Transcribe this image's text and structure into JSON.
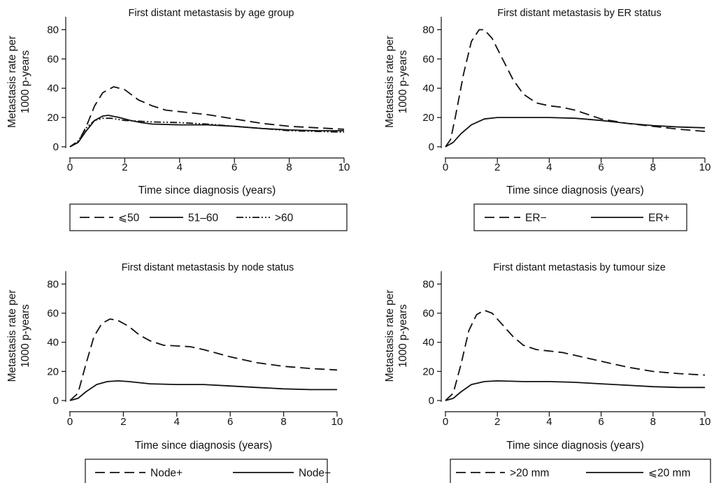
{
  "chart_data": [
    {
      "type": "line",
      "title": "First distant metastasis by age group",
      "xlabel": "Time since diagnosis (years)",
      "ylabel": [
        "Metastasis rate per",
        "1000 p-years"
      ],
      "xlim": [
        0,
        10
      ],
      "ylim": [
        0,
        85
      ],
      "xticks": [
        "0",
        "2",
        "4",
        "6",
        "8",
        "10"
      ],
      "yticks": [
        "0",
        "20",
        "40",
        "60",
        "80"
      ],
      "grid": false,
      "legend_position": "bottom",
      "series": [
        {
          "name": "⩽50",
          "style": "dashed",
          "color": "#111111",
          "points": [
            [
              0,
              0
            ],
            [
              0.3,
              3
            ],
            [
              0.6,
              14
            ],
            [
              0.9,
              28
            ],
            [
              1.2,
              37
            ],
            [
              1.6,
              41
            ],
            [
              2,
              39
            ],
            [
              2.5,
              32
            ],
            [
              3,
              28
            ],
            [
              3.5,
              25
            ],
            [
              4,
              24
            ],
            [
              5,
              22
            ],
            [
              6,
              19
            ],
            [
              7,
              16
            ],
            [
              8,
              14
            ],
            [
              9,
              13
            ],
            [
              10,
              12
            ]
          ]
        },
        {
          "name": "51–60",
          "style": "solid",
          "color": "#111111",
          "points": [
            [
              0,
              0
            ],
            [
              0.3,
              3
            ],
            [
              0.6,
              11
            ],
            [
              0.9,
              18
            ],
            [
              1.2,
              21
            ],
            [
              1.4,
              21.5
            ],
            [
              1.8,
              20
            ],
            [
              2.2,
              18
            ],
            [
              2.6,
              16.5
            ],
            [
              3,
              15.5
            ],
            [
              4,
              15
            ],
            [
              5,
              15
            ],
            [
              6,
              14
            ],
            [
              7,
              12.5
            ],
            [
              8,
              11.5
            ],
            [
              9,
              11
            ],
            [
              10,
              11
            ]
          ]
        },
        {
          "name": ">60",
          "style": "dashdotdot",
          "color": "#111111",
          "points": [
            [
              0,
              0
            ],
            [
              0.3,
              4
            ],
            [
              0.6,
              13
            ],
            [
              0.9,
              18
            ],
            [
              1.2,
              19.5
            ],
            [
              1.5,
              19.5
            ],
            [
              2,
              18
            ],
            [
              3,
              17
            ],
            [
              4,
              16.5
            ],
            [
              5,
              15.5
            ],
            [
              6,
              14
            ],
            [
              7,
              12.5
            ],
            [
              8,
              11
            ],
            [
              9,
              10.5
            ],
            [
              10,
              10
            ]
          ]
        }
      ]
    },
    {
      "type": "line",
      "title": "First distant metastasis by ER status",
      "xlabel": "Time since diagnosis (years)",
      "ylabel": [
        "Metastasis rate per",
        "1000 p-years"
      ],
      "xlim": [
        0,
        10
      ],
      "ylim": [
        0,
        85
      ],
      "xticks": [
        "0",
        "2",
        "4",
        "6",
        "8",
        "10"
      ],
      "yticks": [
        "0",
        "20",
        "40",
        "60",
        "80"
      ],
      "grid": false,
      "legend_position": "bottom",
      "series": [
        {
          "name": "ER−",
          "style": "dashed",
          "color": "#111111",
          "points": [
            [
              0,
              0
            ],
            [
              0.2,
              5
            ],
            [
              0.4,
              22
            ],
            [
              0.7,
              50
            ],
            [
              1,
              72
            ],
            [
              1.3,
              80
            ],
            [
              1.5,
              80
            ],
            [
              1.8,
              74
            ],
            [
              2.2,
              60
            ],
            [
              2.6,
              46
            ],
            [
              3,
              36
            ],
            [
              3.5,
              30
            ],
            [
              4,
              28
            ],
            [
              4.5,
              27
            ],
            [
              5,
              25
            ],
            [
              5.5,
              22
            ],
            [
              6,
              19
            ],
            [
              7,
              16
            ],
            [
              8,
              14
            ],
            [
              9,
              12
            ],
            [
              10,
              10.5
            ]
          ]
        },
        {
          "name": "ER+",
          "style": "solid",
          "color": "#111111",
          "points": [
            [
              0,
              0
            ],
            [
              0.3,
              3
            ],
            [
              0.6,
              9
            ],
            [
              1,
              15
            ],
            [
              1.5,
              19
            ],
            [
              2,
              20
            ],
            [
              3,
              20
            ],
            [
              4,
              20
            ],
            [
              5,
              19.5
            ],
            [
              6,
              18
            ],
            [
              7,
              16
            ],
            [
              8,
              14.5
            ],
            [
              9,
              13.5
            ],
            [
              10,
              13
            ]
          ]
        }
      ]
    },
    {
      "type": "line",
      "title": "First distant metastasis by node status",
      "xlabel": "Time since diagnosis (years)",
      "ylabel": [
        "Metastasis rate per",
        "1000 p-years"
      ],
      "xlim": [
        0,
        10
      ],
      "ylim": [
        0,
        85
      ],
      "xticks": [
        "0",
        "2",
        "4",
        "6",
        "8",
        "10"
      ],
      "yticks": [
        "0",
        "20",
        "40",
        "60",
        "80"
      ],
      "grid": false,
      "legend_position": "bottom",
      "series": [
        {
          "name": "Node+",
          "style": "dashed",
          "color": "#111111",
          "points": [
            [
              0,
              0
            ],
            [
              0.3,
              5
            ],
            [
              0.6,
              25
            ],
            [
              0.9,
              44
            ],
            [
              1.2,
              53
            ],
            [
              1.5,
              56
            ],
            [
              1.8,
              55
            ],
            [
              2.2,
              51
            ],
            [
              2.6,
              45
            ],
            [
              3,
              41
            ],
            [
              3.5,
              38
            ],
            [
              4,
              37.5
            ],
            [
              4.5,
              37
            ],
            [
              5,
              35
            ],
            [
              6,
              30
            ],
            [
              7,
              26
            ],
            [
              8,
              23.5
            ],
            [
              9,
              22
            ],
            [
              10,
              21
            ]
          ]
        },
        {
          "name": "Node−",
          "style": "solid",
          "color": "#111111",
          "points": [
            [
              0,
              0
            ],
            [
              0.3,
              1.5
            ],
            [
              0.6,
              6
            ],
            [
              1,
              11
            ],
            [
              1.4,
              13
            ],
            [
              1.8,
              13.5
            ],
            [
              2.2,
              13
            ],
            [
              3,
              11.5
            ],
            [
              4,
              11
            ],
            [
              5,
              11
            ],
            [
              6,
              10
            ],
            [
              7,
              9
            ],
            [
              8,
              8
            ],
            [
              9,
              7.5
            ],
            [
              10,
              7.5
            ]
          ]
        }
      ]
    },
    {
      "type": "line",
      "title": "First distant metastasis by tumour size",
      "xlabel": "Time since diagnosis (years)",
      "ylabel": [
        "Metastasis rate per",
        "1000 p-years"
      ],
      "xlim": [
        0,
        10
      ],
      "ylim": [
        0,
        85
      ],
      "xticks": [
        "0",
        "2",
        "4",
        "6",
        "8",
        "10"
      ],
      "yticks": [
        "0",
        "20",
        "40",
        "60",
        "80"
      ],
      "grid": false,
      "legend_position": "bottom",
      "series": [
        {
          "name": ">20 mm",
          "style": "dashed",
          "color": "#111111",
          "points": [
            [
              0,
              0
            ],
            [
              0.3,
              5
            ],
            [
              0.6,
              25
            ],
            [
              0.9,
              48
            ],
            [
              1.2,
              59
            ],
            [
              1.5,
              62
            ],
            [
              1.8,
              60
            ],
            [
              2.2,
              52
            ],
            [
              2.6,
              44
            ],
            [
              3,
              38
            ],
            [
              3.5,
              35
            ],
            [
              4,
              34
            ],
            [
              4.5,
              33
            ],
            [
              5,
              31
            ],
            [
              6,
              27
            ],
            [
              7,
              23
            ],
            [
              8,
              20
            ],
            [
              9,
              18.5
            ],
            [
              10,
              17.5
            ]
          ]
        },
        {
          "name": "⩽20 mm",
          "style": "solid",
          "color": "#111111",
          "points": [
            [
              0,
              0
            ],
            [
              0.3,
              1.5
            ],
            [
              0.6,
              6
            ],
            [
              1,
              11
            ],
            [
              1.5,
              13
            ],
            [
              2,
              13.5
            ],
            [
              3,
              13
            ],
            [
              4,
              13
            ],
            [
              5,
              12.5
            ],
            [
              6,
              11.5
            ],
            [
              7,
              10.5
            ],
            [
              8,
              9.5
            ],
            [
              9,
              9
            ],
            [
              10,
              9
            ]
          ]
        }
      ]
    }
  ]
}
